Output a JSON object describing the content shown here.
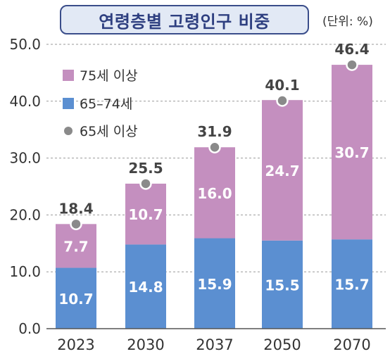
{
  "title": "연령층별 고령인구 비중",
  "unit": "(단위: %)",
  "colors": {
    "age_75_plus": "#c48fbf",
    "age_65_74": "#5b8fd1",
    "marker": "#8a8a8a",
    "title_fill": "#e2e9f5",
    "title_border": "#3a4d8a"
  },
  "chart_data": {
    "type": "bar",
    "stacked": true,
    "title": "연령층별 고령인구 비중",
    "unit": "(단위: %)",
    "categories": [
      "2023",
      "2030",
      "2037",
      "2050",
      "2070"
    ],
    "series": [
      {
        "name": "65–74세",
        "values": [
          10.7,
          14.8,
          15.9,
          15.5,
          15.7
        ]
      },
      {
        "name": "75세 이상",
        "values": [
          7.7,
          10.7,
          16.0,
          24.7,
          30.7
        ]
      }
    ],
    "overlay_series": {
      "name": "65세 이상",
      "type": "scatter",
      "values": [
        18.4,
        25.5,
        31.9,
        40.1,
        46.4
      ]
    },
    "ylim": [
      0,
      50
    ],
    "yticks": [
      "0.0",
      "10.0",
      "20.0",
      "30.0",
      "40.0",
      "50.0"
    ],
    "grid": "dashed horizontal",
    "legend": {
      "position": "top-left",
      "entries": [
        {
          "label": "75세 이상",
          "marker": "square"
        },
        {
          "label": "65–74세",
          "marker": "square"
        },
        {
          "label": "65세 이상",
          "marker": "circle"
        }
      ]
    }
  }
}
